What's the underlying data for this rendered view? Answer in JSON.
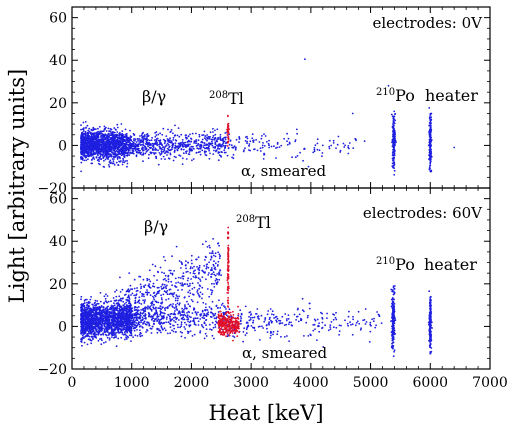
{
  "figure": {
    "xlabel": "Heat [keV]",
    "ylabel": "Light [arbitrary units]",
    "xticks": [
      "0",
      "1000",
      "2000",
      "3000",
      "4000",
      "5000",
      "6000",
      "7000"
    ]
  },
  "chart_data": [
    {
      "type": "scatter",
      "title": "",
      "panel_label": "electrodes: 0V",
      "xlim": [
        0,
        7000
      ],
      "ylim": [
        -20,
        65
      ],
      "yticks": [
        "−20",
        "0",
        "20",
        "40",
        "60"
      ],
      "grid": false,
      "annotations": {
        "beta_gamma": "β/γ",
        "tl208_sup": "208",
        "tl208": "Tl",
        "alpha": "α, smeared",
        "po210_sup": "210",
        "po210": "Po",
        "heater": "heater"
      },
      "series": [
        {
          "color": "#1f1fe0",
          "description_points": [
            [
              300,
              2
            ],
            [
              500,
              -3
            ],
            [
              800,
              5
            ],
            [
              1200,
              0
            ],
            [
              1600,
              3
            ],
            [
              2000,
              -2
            ],
            [
              2400,
              1
            ],
            [
              2800,
              4
            ],
            [
              3300,
              -1
            ],
            [
              3600,
              2
            ],
            [
              3900,
              40.5
            ],
            [
              4200,
              0
            ],
            [
              4700,
              15
            ],
            [
              4900,
              2
            ],
            [
              5300,
              28
            ],
            [
              5400,
              0
            ],
            [
              6000,
              0
            ],
            [
              6400,
              -1
            ]
          ],
          "clusters": [
            {
              "x_range": [
                150,
                900
              ],
              "y_center": 0,
              "y_spread": 7,
              "n": 1400
            },
            {
              "x_range": [
                900,
                2600
              ],
              "y_center": 0,
              "y_spread": 6,
              "n": 700
            },
            {
              "x_range": [
                2600,
                4800
              ],
              "y_center": 0,
              "y_spread": 6,
              "n": 130
            },
            {
              "x_center": 5390,
              "x_spread": 25,
              "y_range": [
                -12,
                16
              ],
              "n": 180
            },
            {
              "x_center": 6000,
              "x_spread": 18,
              "y_range": [
                -13,
                15
              ],
              "n": 180
            }
          ]
        },
        {
          "color": "#e0102a",
          "clusters": [
            {
              "x_center": 2615,
              "x_spread": 12,
              "y_range": [
                -3,
                16
              ],
              "n": 35
            }
          ]
        }
      ]
    },
    {
      "type": "scatter",
      "title": "",
      "panel_label": "electrodes: 60V",
      "xlim": [
        0,
        7000
      ],
      "ylim": [
        -20,
        65
      ],
      "yticks": [
        "−20",
        "0",
        "20",
        "40",
        "60"
      ],
      "grid": false,
      "annotations": {
        "beta_gamma": "β/γ",
        "tl208_sup": "208",
        "tl208": "Tl",
        "alpha": "α, smeared",
        "po210_sup": "210",
        "po210": "Po",
        "heater": "heater"
      },
      "series": [
        {
          "color": "#1f1fe0",
          "clusters": [
            {
              "x_range": [
                150,
                1000
              ],
              "y_center": 3,
              "y_spread": 8,
              "n": 1600
            },
            {
              "x_range": [
                900,
                2600
              ],
              "y_center": 4,
              "y_spread": 8,
              "n": 600
            },
            {
              "x_band": [
                700,
                2500
              ],
              "y_band_slope": 0.011,
              "y_spread": 10,
              "n": 450
            },
            {
              "x_range": [
                2600,
                5200
              ],
              "y_center": 2,
              "y_spread": 7,
              "n": 260
            },
            {
              "x_center": 5380,
              "x_spread": 25,
              "y_range": [
                -12,
                19
              ],
              "n": 200
            },
            {
              "x_center": 6000,
              "x_spread": 18,
              "y_range": [
                -13,
                14
              ],
              "n": 200
            }
          ]
        },
        {
          "color": "#e0102a",
          "clusters": [
            {
              "x_range": [
                2450,
                2800
              ],
              "y_center": 1,
              "y_spread": 5,
              "n": 280
            },
            {
              "x_center": 2615,
              "x_spread": 10,
              "y_range": [
                5,
                48
              ],
              "n": 90
            }
          ]
        }
      ]
    }
  ]
}
